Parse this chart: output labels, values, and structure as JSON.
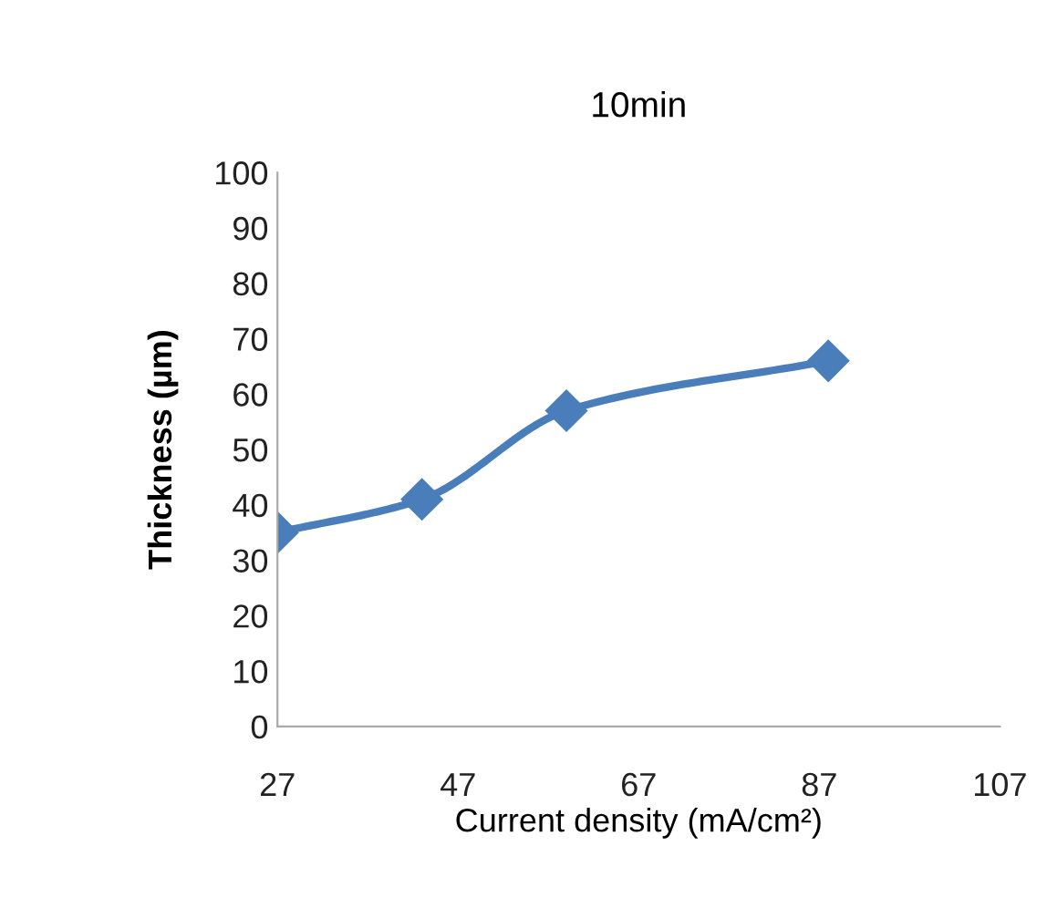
{
  "chart_data": {
    "type": "line",
    "title": "10min",
    "xlabel": "Current density (mA/cm²)",
    "ylabel": "Thickness (µm)",
    "x": [
      27,
      43,
      59,
      88
    ],
    "series": [
      {
        "color": "#4a7ebb",
        "values": [
          35,
          41,
          57,
          66
        ]
      }
    ],
    "xlim": [
      27,
      107
    ],
    "xticks": [
      27,
      47,
      67,
      87,
      107
    ],
    "ylim": [
      0,
      100
    ],
    "yticks": [
      0,
      10,
      20,
      30,
      40,
      50,
      60,
      70,
      80,
      90,
      100
    ],
    "marker": "diamond",
    "line_style": "solid",
    "grid": false,
    "legend": false
  }
}
